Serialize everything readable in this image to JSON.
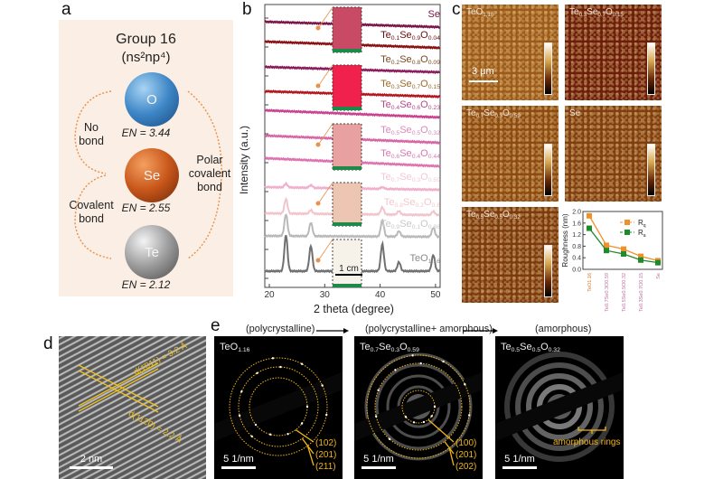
{
  "panel_labels": {
    "a": "a",
    "b": "b",
    "c": "c",
    "d": "d",
    "e": "e"
  },
  "panel_a": {
    "title": "Group 16",
    "config": "(ns²np⁴)",
    "elements": [
      {
        "symbol": "O",
        "en": "EN = 3.44",
        "color": "#3d86c6"
      },
      {
        "symbol": "Se",
        "en": "EN = 2.55",
        "color": "#c8561a"
      },
      {
        "symbol": "Te",
        "en": "EN = 2.12",
        "color": "#9a9a9a"
      }
    ],
    "no_bond": "No bond",
    "covalent_bond": "Covalent bond",
    "polar_covalent_bond": "Polar covalent bond",
    "arrow_color": "#e8914a",
    "background": "#fbeee4"
  },
  "chart_data": [
    {
      "type": "line",
      "panel": "b",
      "xlabel": "2 theta (degree)",
      "ylabel": "Intensity (a.u.)",
      "xlim": [
        19,
        51
      ],
      "xticks": [
        20,
        30,
        40,
        50
      ],
      "y_units": "a.u. (offset, stacked)",
      "scale_bar": "1 cm",
      "series": [
        {
          "name": "Se",
          "color": "#7a1448",
          "label_color": "#7a1448",
          "peaks": []
        },
        {
          "name": "Te0.1Se0.9O0.04",
          "color": "#8a0f12",
          "label_color": "#6a0c0c",
          "peaks": []
        },
        {
          "name": "Te0.2Se0.8O0.09",
          "color": "#8a1a5c",
          "label_color": "#7a4a20",
          "peaks": []
        },
        {
          "name": "Te0.3Se0.7O0.15",
          "color": "#b4141c",
          "label_color": "#9a6a2a",
          "peaks": []
        },
        {
          "name": "Te0.4Se0.6O0.23",
          "color": "#c9418f",
          "label_color": "#b8488a",
          "peaks": []
        },
        {
          "name": "Te0.5Se0.5O0.32",
          "color": "#d765a6",
          "label_color": "#d98ab8",
          "peaks": []
        },
        {
          "name": "Te0.6Se0.4O0.44",
          "color": "#de72b0",
          "label_color": "#d878b0",
          "peaks": []
        },
        {
          "name": "Te0.7Se0.3O0.59",
          "color": "#f0b0cc",
          "label_color": "#f4c8d8",
          "peaks": [
            [
              23.0,
              4
            ],
            [
              27.5,
              3
            ],
            [
              40.4,
              2
            ]
          ]
        },
        {
          "name": "Te0.8Se0.2O0.8",
          "color": "#f2c4cc",
          "label_color": "#f2c8cc",
          "peaks": [
            [
              23.0,
              16
            ],
            [
              27.5,
              4
            ],
            [
              40.4,
              8
            ],
            [
              43.4,
              4
            ],
            [
              49.6,
              4
            ]
          ]
        },
        {
          "name": "Te0.9Se0.1O0.98",
          "color": "#b9b9b9",
          "label_color": "#c8c8c8",
          "peaks": [
            [
              23.0,
              24
            ],
            [
              27.5,
              15
            ],
            [
              40.4,
              18
            ],
            [
              43.4,
              6
            ],
            [
              49.6,
              10
            ]
          ]
        },
        {
          "name": "TeO1.16",
          "color": "#707070",
          "label_color": "#8a8a8a",
          "peaks": [
            [
              23.0,
              40
            ],
            [
              27.5,
              28
            ],
            [
              40.4,
              30
            ],
            [
              43.4,
              10
            ],
            [
              49.6,
              18
            ]
          ]
        }
      ]
    },
    {
      "type": "line",
      "panel": "c",
      "ylabel": "Roughness (nm)",
      "ylim": [
        0,
        2.0
      ],
      "yticks": [
        "0.0",
        "0.4",
        "0.8",
        "1.2",
        "1.6",
        "2.0"
      ],
      "categories": [
        "TeO1.16",
        "Te0.7Se0.3O0.59",
        "Te0.5Se0.5O0.32",
        "Te0.3Se0.7O0.15",
        "Se"
      ],
      "legend_position": "top-right",
      "series": [
        {
          "name": "Rq",
          "color": "#f0902a",
          "values": [
            1.85,
            0.83,
            0.7,
            0.45,
            0.3
          ]
        },
        {
          "name": "Ra",
          "color": "#1e8a2a",
          "values": [
            1.42,
            0.65,
            0.53,
            0.32,
            0.23
          ]
        }
      ]
    }
  ],
  "panel_c": {
    "images": [
      "TeO1.16",
      "Te0.3Se0.7O0.15",
      "Te0.7Se0.3O0.59",
      "Se",
      "Te0.5Se0.5O0.32"
    ],
    "scale_bar": "3 μm"
  },
  "panel_d": {
    "d1": "d(1̄011) = 3.2 Å",
    "d2": "d(112̄0) = 2.2 Å",
    "scale_bar": "2 nm"
  },
  "panel_e": {
    "titles": [
      "(polycrystalline)",
      "(polycrystalline+ amorphous)",
      "(amorphous)"
    ],
    "images": [
      {
        "name": "TeO1.16",
        "scale_bar": "5 1/nm",
        "rings": [
          "(102)",
          "(201)",
          "(211)"
        ]
      },
      {
        "name": "Te0.7Se0.3O0.59",
        "scale_bar": "5 1/nm",
        "rings": [
          "(100)",
          "(201)",
          "(202)"
        ]
      },
      {
        "name": "Te0.5Se0.5O0.32",
        "scale_bar": "5 1/nm",
        "annotation": "amorphous rings"
      }
    ],
    "ring_color": "#f2b418"
  }
}
